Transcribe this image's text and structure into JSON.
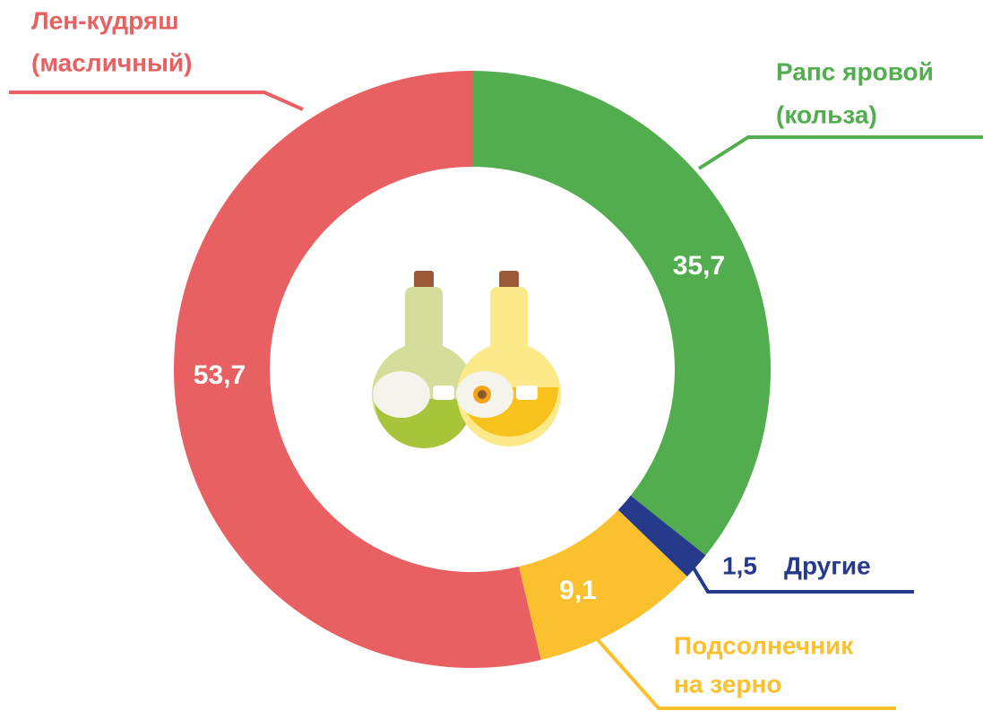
{
  "chart_data": {
    "type": "donut",
    "categories": [
      [
        "Рапс яровой",
        "(кольза)"
      ],
      [
        "Другие"
      ],
      [
        "Подсолнечник",
        "на зерно"
      ],
      [
        "Лен-кудряш",
        "(масличный)"
      ]
    ],
    "values": [
      35.7,
      1.5,
      9.1,
      53.7
    ],
    "value_labels": [
      "35,7",
      "1,5",
      "9,1",
      "53,7"
    ],
    "colors": [
      "#52ad4f",
      "#253a8a",
      "#fbc02d",
      "#e96062"
    ]
  }
}
